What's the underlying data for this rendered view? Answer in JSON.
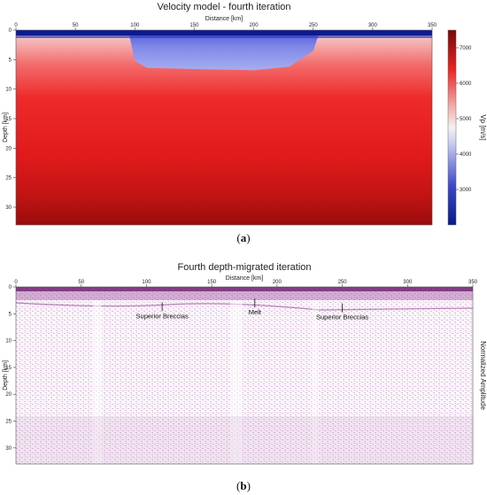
{
  "colors": {
    "deep_blue": "#0a1a8c",
    "mid_blue": "#6f78e6",
    "light_blue": "#9aa5ec",
    "white": "#f7f2f2",
    "light_red": "#f39a9a",
    "red": "#ee1f1f",
    "dark_red": "#8c0a0a",
    "seismic_purple": "#7a1f7a"
  },
  "chart_data": [
    {
      "type": "heatmap",
      "panel_tag": "(a)",
      "panel_tag_letter": "a",
      "title": "Velocity model - fourth iteration",
      "xlabel": "Distance [km]",
      "ylabel": "Depth [km]",
      "x_ticks": [
        0,
        50,
        100,
        150,
        200,
        250,
        300,
        350
      ],
      "y_ticks": [
        0,
        5,
        10,
        15,
        20,
        25,
        30
      ],
      "xlim": [
        0,
        350
      ],
      "ylim": [
        33,
        0
      ],
      "colorbar": {
        "label": "Vp [m/s]",
        "ticks": [
          3000,
          4000,
          5000,
          6000,
          7000
        ],
        "range": [
          2000,
          7500
        ]
      },
      "low_velocity_zone": {
        "x_start": 95,
        "x_end": 255,
        "base_depth_profile": [
          [
            95,
            0.5
          ],
          [
            100,
            5.2
          ],
          [
            110,
            6.4
          ],
          [
            150,
            6.6
          ],
          [
            200,
            6.8
          ],
          [
            230,
            6.2
          ],
          [
            250,
            3.5
          ],
          [
            255,
            0.5
          ]
        ]
      }
    },
    {
      "type": "heatmap",
      "panel_tag": "(b)",
      "panel_tag_letter": "b",
      "title": "Fourth depth-migrated iteration",
      "xlabel": "Distance [km]",
      "ylabel": "Depth [km]",
      "colorbar_label": "Normalized Amplitude",
      "x_ticks": [
        0,
        50,
        100,
        150,
        200,
        250,
        300,
        350
      ],
      "y_ticks": [
        0,
        5,
        10,
        15,
        20,
        25,
        30
      ],
      "xlim": [
        0,
        350
      ],
      "ylim": [
        33,
        0
      ],
      "annotations": [
        {
          "text": "Superior Breccias",
          "x": 112,
          "y": 3.2
        },
        {
          "text": "Melt",
          "x": 183,
          "y": 2.5
        },
        {
          "text": "Superior Breccias",
          "x": 250,
          "y": 3.4
        }
      ]
    }
  ]
}
